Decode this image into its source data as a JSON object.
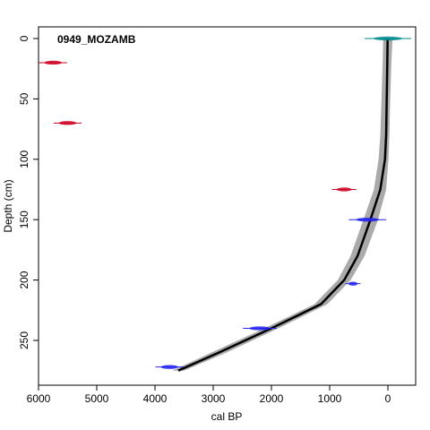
{
  "chart_data": {
    "type": "line",
    "title": "0949_MOZAMB",
    "xlabel": "cal BP",
    "ylabel": "Depth (cm)",
    "xlim": [
      6000,
      -500
    ],
    "ylim": [
      0,
      285
    ],
    "x_ticks": [
      6000,
      5000,
      4000,
      3000,
      2000,
      1000,
      0
    ],
    "y_ticks": [
      0,
      50,
      100,
      150,
      200,
      250
    ],
    "age_model": {
      "name": "",
      "color": "#000000",
      "band_color": "#aaaaaa",
      "points": [
        {
          "depth": 0,
          "age": 5,
          "min": -80,
          "max": 80
        },
        {
          "depth": 20,
          "age": 10,
          "min": -60,
          "max": 90
        },
        {
          "depth": 50,
          "age": 20,
          "min": -40,
          "max": 110
        },
        {
          "depth": 80,
          "age": 30,
          "min": -25,
          "max": 130
        },
        {
          "depth": 100,
          "age": 50,
          "min": -10,
          "max": 160
        },
        {
          "depth": 125,
          "age": 130,
          "min": 30,
          "max": 240
        },
        {
          "depth": 150,
          "age": 300,
          "min": 170,
          "max": 420
        },
        {
          "depth": 180,
          "age": 520,
          "min": 400,
          "max": 640
        },
        {
          "depth": 200,
          "age": 750,
          "min": 640,
          "max": 860
        },
        {
          "depth": 220,
          "age": 1150,
          "min": 1040,
          "max": 1260
        },
        {
          "depth": 240,
          "age": 2000,
          "min": 1880,
          "max": 2120
        },
        {
          "depth": 260,
          "age": 2900,
          "min": 2770,
          "max": 3030
        },
        {
          "depth": 275,
          "age": 3600,
          "min": 3500,
          "max": 3700
        }
      ]
    },
    "dates": [
      {
        "depth": 0,
        "age": 0,
        "error": 250,
        "color": "#008b8b",
        "type": "surface"
      },
      {
        "depth": 20,
        "age": 5750,
        "error": 150,
        "color": "#cc0022",
        "type": "rejected"
      },
      {
        "depth": 70,
        "age": 5500,
        "error": 150,
        "color": "#cc0022",
        "type": "rejected"
      },
      {
        "depth": 125,
        "age": 750,
        "error": 130,
        "color": "#cc0022",
        "type": "rejected"
      },
      {
        "depth": 150,
        "age": 350,
        "error": 200,
        "color": "#2222ee",
        "type": "accepted"
      },
      {
        "depth": 203,
        "age": 600,
        "error": 80,
        "color": "#2222ee",
        "type": "accepted"
      },
      {
        "depth": 240,
        "age": 2200,
        "error": 180,
        "color": "#2222ee",
        "type": "accepted"
      },
      {
        "depth": 272,
        "age": 3750,
        "error": 150,
        "color": "#2222ee",
        "type": "accepted"
      }
    ],
    "grid": false
  }
}
